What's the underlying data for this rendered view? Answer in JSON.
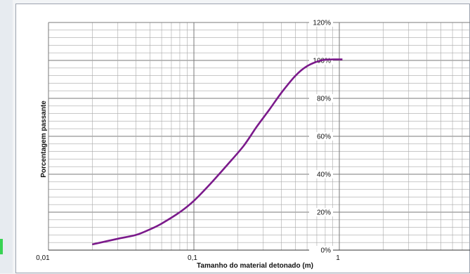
{
  "colors": {
    "curve": "#7b1a8b",
    "grid_major": "#7a7a7a",
    "grid_minor": "#a8a8a8",
    "background": "#ffffff"
  },
  "chart_data": {
    "type": "line",
    "title": "",
    "xlabel": "Tamanho do material detonado (m)",
    "ylabel": "Porcentagem passante",
    "x_scale": "log",
    "xlim": [
      0.01,
      10
    ],
    "ylim": [
      0,
      120
    ],
    "x_tick_labels": [
      "0,01",
      "0,1",
      "1"
    ],
    "y_tick_labels": [
      "0%",
      "20%",
      "40%",
      "60%",
      "80%",
      "100%",
      "120%"
    ],
    "grid": true,
    "series": [
      {
        "x": [
          0.02,
          0.03,
          0.04,
          0.05,
          0.06,
          0.08,
          0.1,
          0.13,
          0.17,
          0.22,
          0.27,
          0.33,
          0.4,
          0.5,
          0.6,
          0.75,
          0.9,
          1.05
        ],
        "y": [
          3,
          6,
          8,
          11,
          14,
          20,
          26,
          35,
          45,
          55,
          65,
          74,
          83,
          92,
          97,
          100,
          100.5,
          100.5
        ]
      }
    ]
  }
}
